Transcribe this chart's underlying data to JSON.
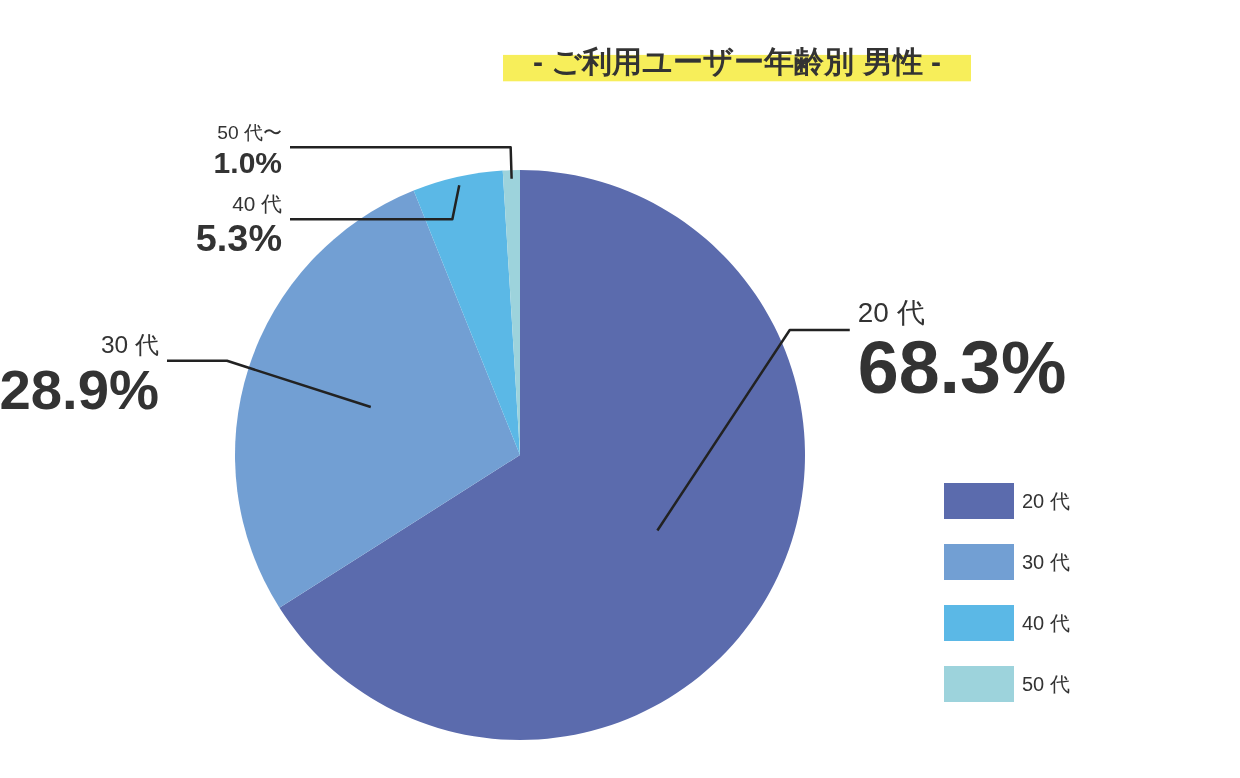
{
  "chart_data": {
    "type": "pie",
    "title": "- ご利用ユーザー年齢別 男性 -",
    "categories": [
      "20 代",
      "30 代",
      "40 代",
      "50 代"
    ],
    "values": [
      68.3,
      28.9,
      5.3,
      1.0
    ],
    "colors": [
      "#5b6bad",
      "#729fd3",
      "#5bb8e6",
      "#9dd3dc"
    ],
    "value_labels": [
      "68.3%",
      "28.9%",
      "5.3%",
      "1.0%"
    ],
    "annotations": [
      "20 代",
      "30 代",
      "40 代",
      "50 代〜"
    ],
    "legend": "bottom right"
  }
}
